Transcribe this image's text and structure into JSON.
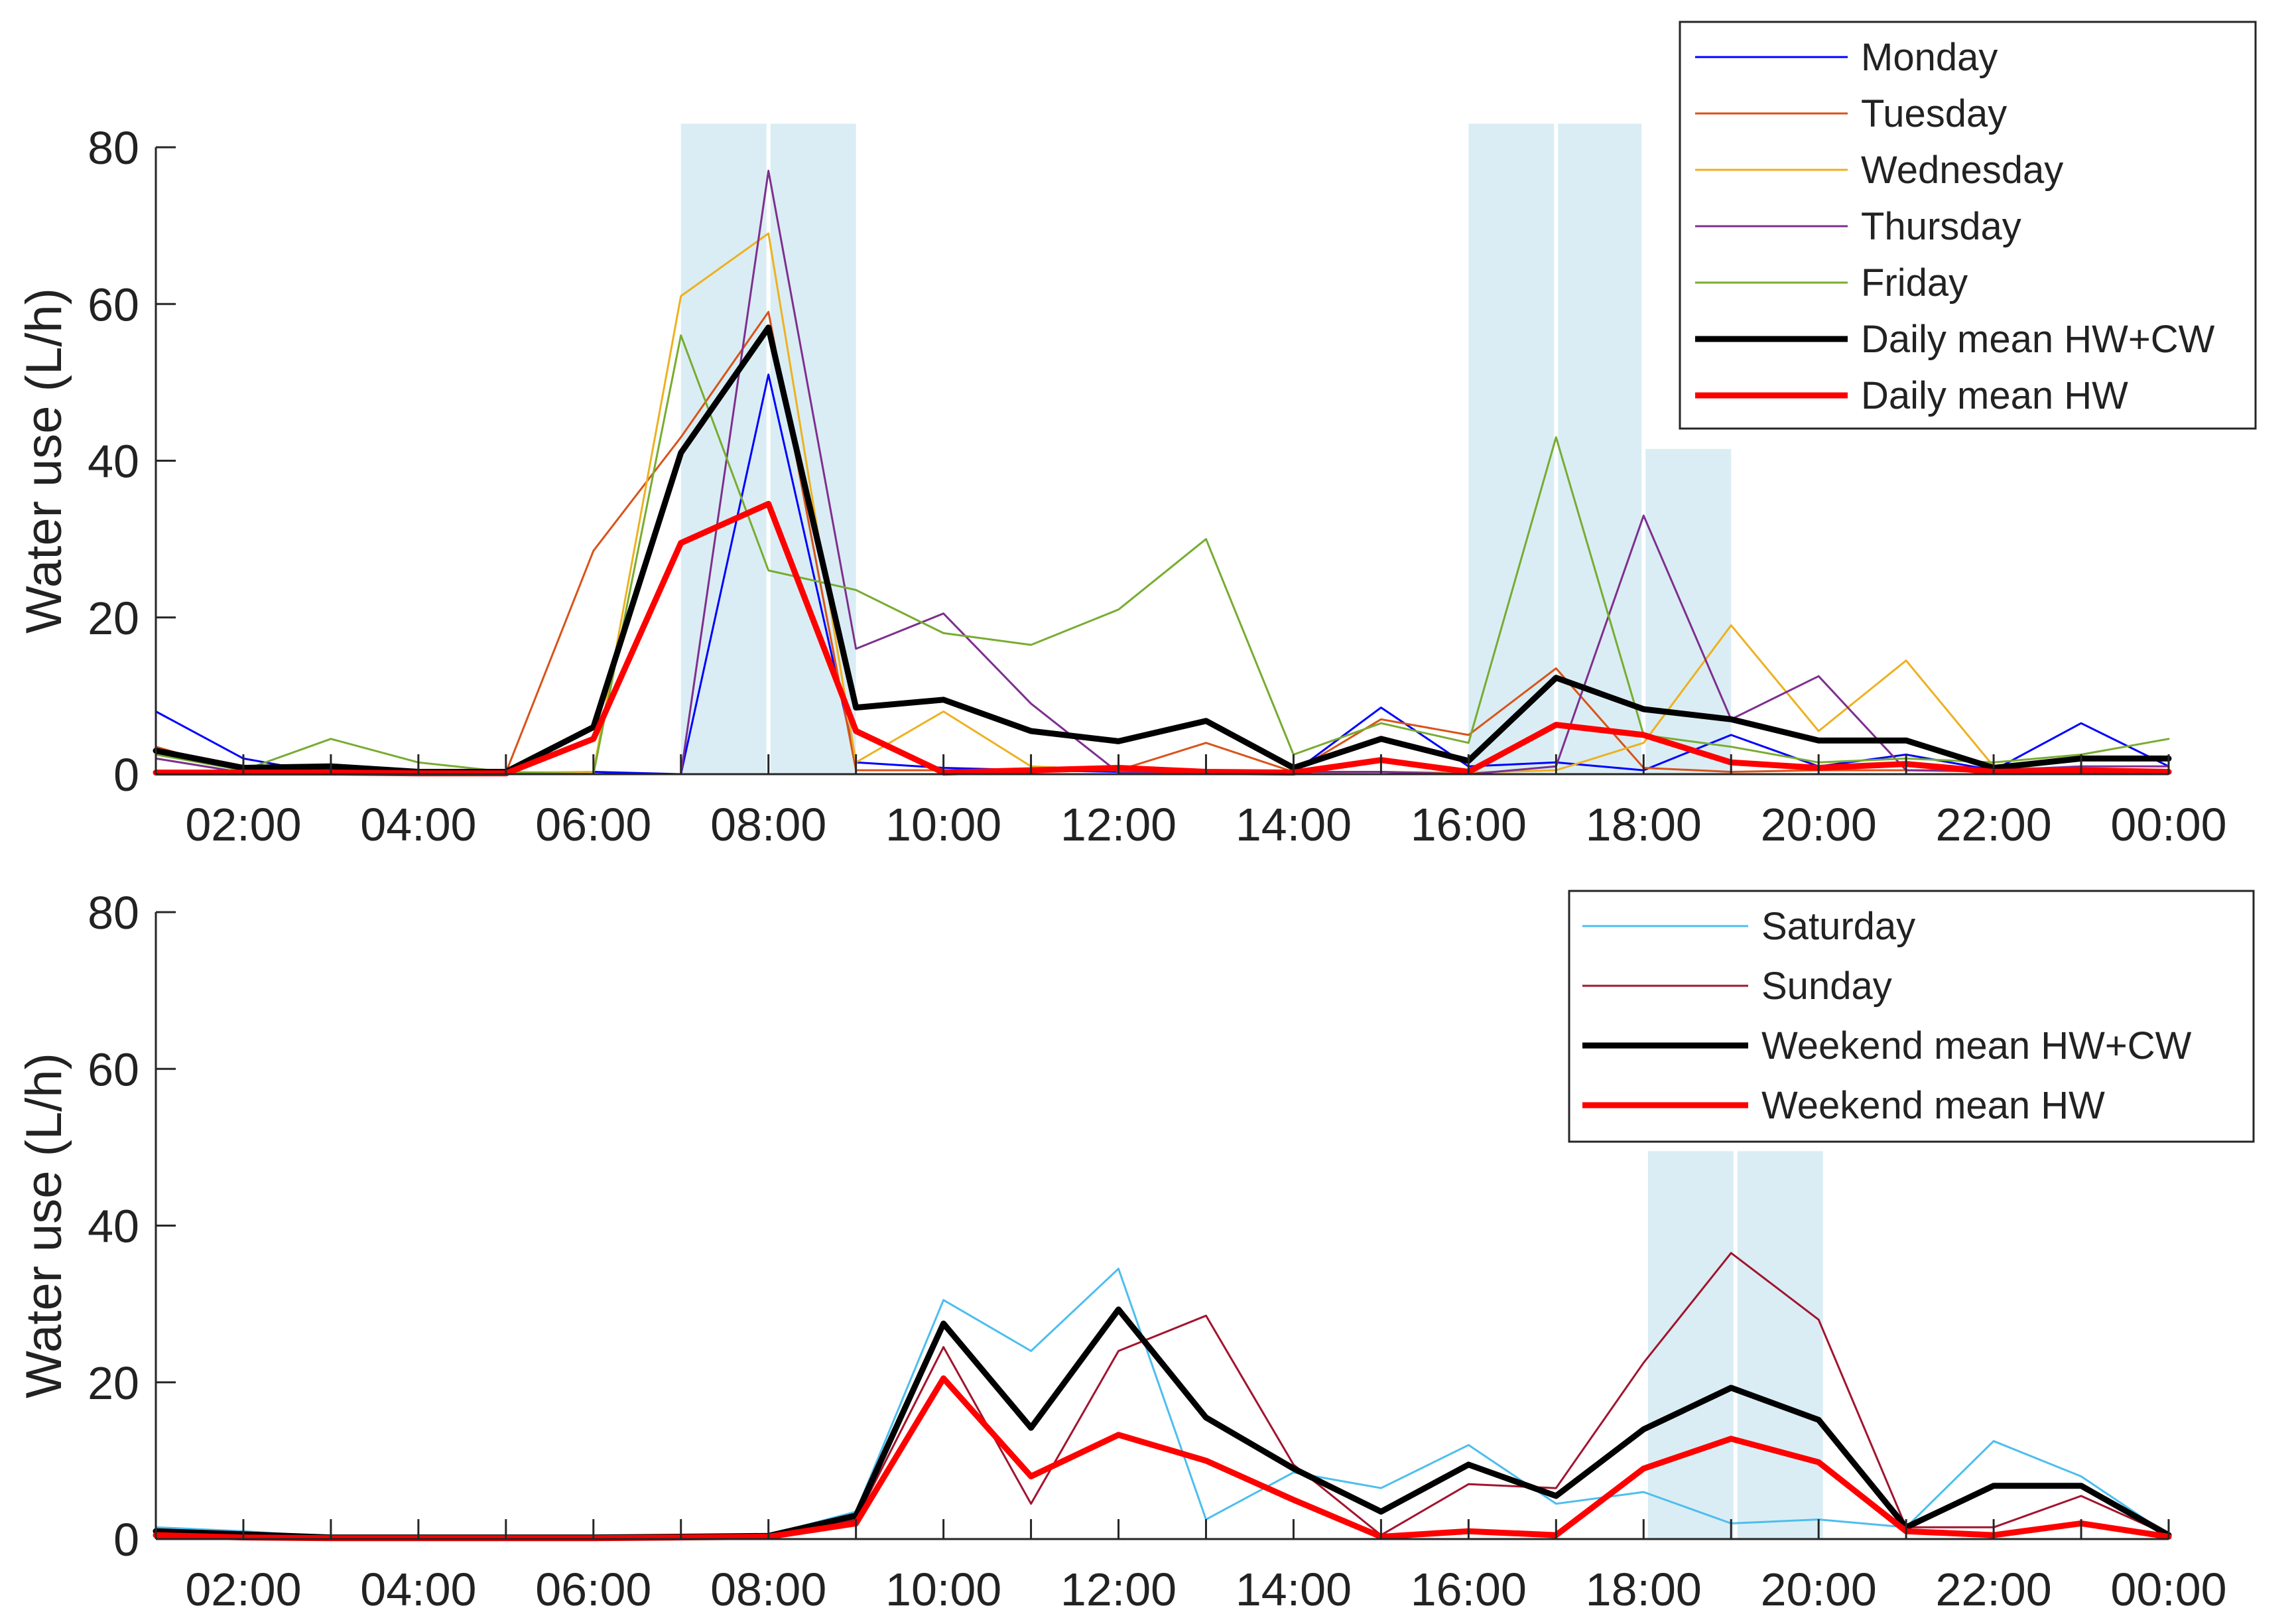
{
  "chart_data": [
    {
      "type": "line",
      "panel": "weekday",
      "ylabel": "Water use (L/h)",
      "xlabel": "",
      "ylim": [
        0,
        80
      ],
      "yticks": [
        0,
        20,
        40,
        60,
        80
      ],
      "xlim": [
        1,
        24
      ],
      "xticks": [
        2,
        4,
        6,
        8,
        10,
        12,
        14,
        16,
        18,
        20,
        22,
        24
      ],
      "xtick_labels": [
        "02:00",
        "04:00",
        "06:00",
        "08:00",
        "10:00",
        "12:00",
        "14:00",
        "16:00",
        "18:00",
        "20:00",
        "22:00",
        "00:00"
      ],
      "grid": false,
      "legend_position": "top-right",
      "x": [
        1,
        2,
        3,
        4,
        5,
        6,
        7,
        8,
        9,
        10,
        11,
        12,
        13,
        14,
        15,
        16,
        17,
        18,
        19,
        20,
        21,
        22,
        23,
        24
      ],
      "shaded_regions": [
        {
          "from": 7,
          "to": 9,
          "top": 83
        },
        {
          "from": 16,
          "to": 18,
          "top": 83
        },
        {
          "from": 18,
          "to": 19,
          "top": 41.5
        }
      ],
      "divider_lines": [
        8,
        17,
        18
      ],
      "series": [
        {
          "name": "Monday",
          "color": "#0000ff",
          "width": 3,
          "values": [
            8,
            2,
            0,
            0,
            0,
            0.3,
            0,
            51,
            1.5,
            0.8,
            0.5,
            0.3,
            0,
            0.2,
            8.5,
            1,
            1.5,
            0.5,
            5,
            1,
            2.5,
            0.5,
            6.5,
            1
          ]
        },
        {
          "name": "Tuesday",
          "color": "#d95319",
          "width": 3,
          "values": [
            3.5,
            0.3,
            0.3,
            0.2,
            0.2,
            28.5,
            43,
            59,
            0.5,
            0.5,
            0.5,
            0.5,
            4,
            0.3,
            7,
            5,
            13.5,
            0.8,
            0.3,
            0.5,
            0.5,
            0.3,
            0.5,
            0.3
          ]
        },
        {
          "name": "Wednesday",
          "color": "#edb120",
          "width": 3,
          "values": [
            0.3,
            0.3,
            0.3,
            0.2,
            0.2,
            0.3,
            61,
            69,
            1.5,
            8,
            1,
            0.5,
            0.3,
            0.2,
            0.3,
            0.2,
            0.5,
            4,
            19,
            5.5,
            14.5,
            1,
            0.5,
            0.5
          ]
        },
        {
          "name": "Thursday",
          "color": "#7e2f8e",
          "width": 3,
          "values": [
            2,
            0.2,
            0.5,
            0.2,
            0.2,
            0,
            0,
            77,
            16,
            20.5,
            9,
            0.2,
            0.2,
            0.3,
            0.3,
            0,
            1,
            33,
            7,
            12.5,
            0.5,
            0.5,
            1,
            1
          ]
        },
        {
          "name": "Friday",
          "color": "#77ac30",
          "width": 3,
          "values": [
            2.5,
            0.5,
            4.5,
            1.5,
            0.3,
            0,
            56,
            26,
            23.5,
            18,
            16.5,
            21,
            30,
            2.5,
            6.5,
            4,
            43,
            5,
            3.5,
            1.5,
            2,
            1.5,
            2.5,
            4.5
          ]
        },
        {
          "name": "Daily mean HW+CW",
          "color": "#000000",
          "width": 9,
          "values": [
            3,
            0.8,
            1,
            0.3,
            0.3,
            6,
            41,
            57,
            8.5,
            9.5,
            5.5,
            4.2,
            6.8,
            0.8,
            4.5,
            1.7,
            12.3,
            8.3,
            7,
            4.3,
            4.3,
            0.8,
            2,
            2
          ]
        },
        {
          "name": "Daily mean HW",
          "color": "#ff0000",
          "width": 9,
          "values": [
            0.2,
            0.2,
            0.2,
            0.1,
            0.1,
            4.5,
            29.5,
            34.5,
            5.5,
            0.2,
            0.5,
            0.8,
            0.3,
            0.2,
            1.8,
            0.3,
            6.3,
            5,
            1.5,
            0.8,
            1.3,
            0.3,
            0.5,
            0.3
          ]
        }
      ]
    },
    {
      "type": "line",
      "panel": "weekend",
      "ylabel": "Water use  (L/h)",
      "xlabel": "",
      "ylim": [
        0,
        80
      ],
      "yticks": [
        0,
        20,
        40,
        60,
        80
      ],
      "xlim": [
        1,
        24
      ],
      "xticks": [
        2,
        4,
        6,
        8,
        10,
        12,
        14,
        16,
        18,
        20,
        22,
        24
      ],
      "xtick_labels": [
        "02:00",
        "04:00",
        "06:00",
        "08:00",
        "10:00",
        "12:00",
        "14:00",
        "16:00",
        "18:00",
        "20:00",
        "22:00",
        "00:00"
      ],
      "grid": false,
      "legend_position": "top-right",
      "x": [
        1,
        2,
        3,
        4,
        5,
        6,
        7,
        8,
        9,
        10,
        11,
        12,
        13,
        14,
        15,
        16,
        17,
        18,
        19,
        20,
        21,
        22,
        23,
        24
      ],
      "shaded_regions": [
        {
          "from": 18.05,
          "to": 20.05,
          "top": 49.5
        }
      ],
      "divider_lines": [
        19.05
      ],
      "series": [
        {
          "name": "Saturday",
          "color": "#4dbeee",
          "width": 3,
          "values": [
            1.5,
            1,
            0.3,
            0.3,
            0.3,
            0.3,
            0.5,
            0.5,
            3.5,
            30.5,
            24,
            34.5,
            2.5,
            8.5,
            6.5,
            12,
            4.5,
            6,
            2,
            2.5,
            1.5,
            12.5,
            8,
            0.5
          ]
        },
        {
          "name": "Sunday",
          "color": "#a2142f",
          "width": 3,
          "values": [
            0.5,
            0.3,
            0.2,
            0.2,
            0.2,
            0.2,
            0.3,
            0.3,
            2.5,
            24.5,
            4.5,
            24,
            28.5,
            9.5,
            0.5,
            7,
            6.5,
            22.5,
            36.5,
            28,
            1.5,
            1.5,
            5.5,
            0.5
          ]
        },
        {
          "name": "Weekend mean HW+CW",
          "color": "#000000",
          "width": 9,
          "values": [
            1,
            0.6,
            0.2,
            0.2,
            0.2,
            0.2,
            0.3,
            0.4,
            3,
            27.5,
            14.2,
            29.3,
            15.5,
            9,
            3.5,
            9.5,
            5.5,
            14,
            19.3,
            15.2,
            1.5,
            6.8,
            6.8,
            0.5
          ]
        },
        {
          "name": "Weekend mean HW",
          "color": "#ff0000",
          "width": 9,
          "values": [
            0.5,
            0.2,
            0.1,
            0.1,
            0.1,
            0.1,
            0.2,
            0.3,
            2,
            20.5,
            8,
            13.3,
            10,
            5,
            0.3,
            1,
            0.5,
            9,
            12.8,
            9.8,
            1,
            0.5,
            2,
            0.3
          ]
        }
      ]
    }
  ]
}
